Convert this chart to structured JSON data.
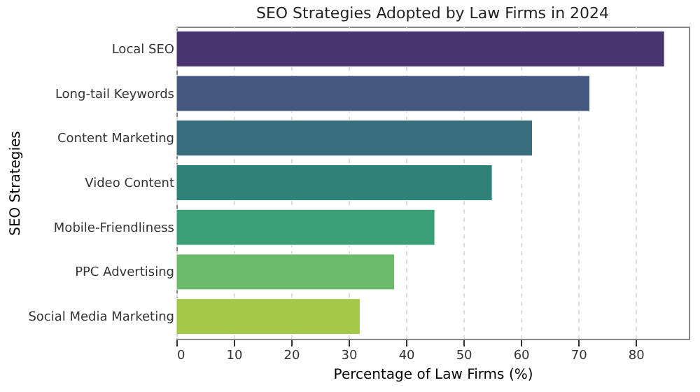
{
  "chart_data": {
    "type": "bar",
    "orientation": "horizontal",
    "title": "SEO Strategies Adopted by Law Firms in 2024",
    "xlabel": "Percentage of Law Firms (%)",
    "ylabel": "SEO Strategies",
    "categories": [
      "Local SEO",
      "Long-tail Keywords",
      "Content Marketing",
      "Video Content",
      "Mobile-Friendliness",
      "PPC Advertising",
      "Social Media Marketing"
    ],
    "values": [
      85,
      72,
      62,
      55,
      45,
      38,
      32
    ],
    "colors": [
      "#4a3470",
      "#45587f",
      "#386d7e",
      "#2e8277",
      "#3ba077",
      "#6cbb6a",
      "#a5c84a"
    ],
    "xlim": [
      0,
      89.25
    ],
    "xticks": [
      0,
      10,
      20,
      30,
      40,
      50,
      60,
      70,
      80
    ],
    "grid": "x"
  }
}
